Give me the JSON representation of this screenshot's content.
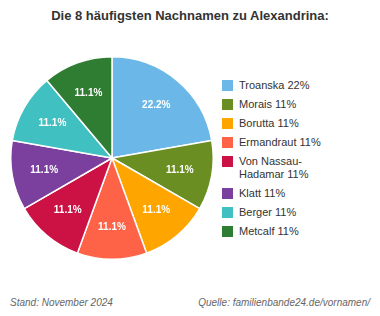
{
  "chart_data": {
    "type": "pie",
    "title": "Die 8 häufigsten Nachnamen zu Alexandrina:",
    "categories": [
      "Troanska 22%",
      "Morais 11%",
      "Borutta 11%",
      "Ermandraut 11%",
      "Von Nassau-\nHadamar 11%",
      "Klatt 11%",
      "Berger 11%",
      "Metcalf 11%"
    ],
    "values": [
      22.2,
      11.1,
      11.1,
      11.1,
      11.1,
      11.1,
      11.1,
      11.1
    ],
    "value_labels": [
      "22.2%",
      "11.1%",
      "11.1%",
      "11.1%",
      "11.1%",
      "11.1%",
      "11.1%",
      "11.1%"
    ],
    "colors": [
      "#6BB8E8",
      "#6B8E23",
      "#FFA500",
      "#FF6347",
      "#CC1144",
      "#7B3F9E",
      "#40C0C0",
      "#2E7D32"
    ],
    "data_labels": true,
    "legend": "right",
    "annotations": [
      "Stand: November 2024",
      "Quelle: familienbande24.de/vornamen/"
    ]
  }
}
